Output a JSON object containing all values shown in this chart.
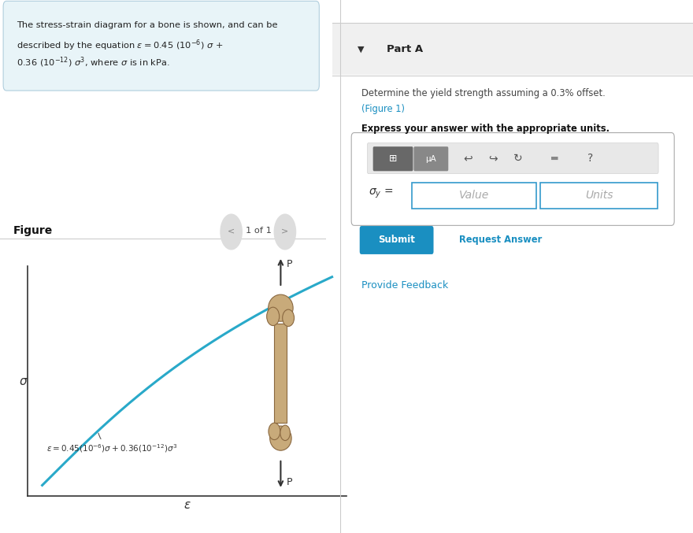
{
  "bg_color": "#ffffff",
  "left_panel_bg": "#e8f4f8",
  "left_panel_border": "#b0cedd",
  "curve_color": "#29a9c9",
  "figure_label": "Figure",
  "figure_nav": "1 of 1",
  "part_a_bg": "#f0f0f0",
  "part_a_label": "Part A",
  "submit_color": "#1a8fc1",
  "submit_text": "Submit",
  "request_text": "Request Answer",
  "feedback_text": "Provide Feedback",
  "link_color": "#1a8fc1",
  "divider_color": "#cccccc"
}
